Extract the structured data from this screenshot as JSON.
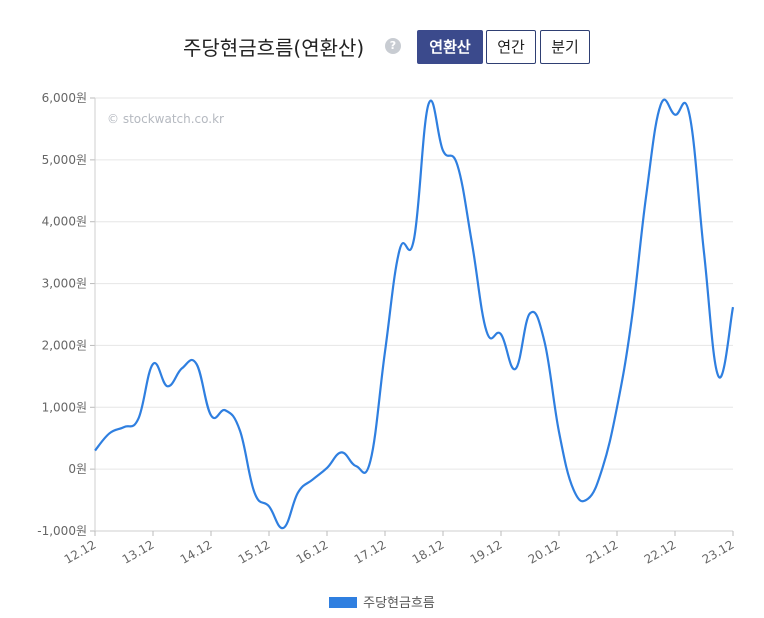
{
  "header": {
    "title": "주당현금흐름(연환산)",
    "help_icon": "question-circle-icon",
    "buttons": [
      {
        "label": "연환산",
        "active": true
      },
      {
        "label": "연간",
        "active": false
      },
      {
        "label": "분기",
        "active": false
      }
    ]
  },
  "watermark": "© stockwatch.co.kr",
  "colors": {
    "line": "#2f7fe0",
    "grid": "#e6e6e6",
    "active_button": "#3b4a8c"
  },
  "chart_data": {
    "type": "line",
    "title": "주당현금흐름(연환산)",
    "ylim": [
      -1000,
      6000
    ],
    "y_ticks": [
      {
        "value": 6000,
        "label": "6,000원"
      },
      {
        "value": 5000,
        "label": "5,000원"
      },
      {
        "value": 4000,
        "label": "4,000원"
      },
      {
        "value": 3000,
        "label": "3,000원"
      },
      {
        "value": 2000,
        "label": "2,000원"
      },
      {
        "value": 1000,
        "label": "1,000원"
      },
      {
        "value": 0,
        "label": "0원"
      },
      {
        "value": -1000,
        "label": "-1,000원"
      }
    ],
    "x_ticks": [
      "12.12",
      "13.12",
      "14.12",
      "15.12",
      "16.12",
      "17.12",
      "18.12",
      "19.12",
      "20.12",
      "21.12",
      "22.12",
      "23.12"
    ],
    "xlim": [
      0,
      44
    ],
    "grid": true,
    "legend_position": "bottom-center",
    "series": [
      {
        "name": "주당현금흐름",
        "x": [
          0,
          1,
          2,
          3,
          4,
          5,
          6,
          7,
          8,
          9,
          10,
          11,
          12,
          13,
          14,
          15,
          16,
          17,
          18,
          19,
          20,
          21,
          22,
          23,
          24,
          25,
          26,
          27,
          28,
          29,
          30,
          31,
          32,
          33,
          34,
          35,
          36,
          37,
          38,
          39,
          40,
          41,
          42,
          43,
          44
        ],
        "values": [
          300,
          580,
          680,
          820,
          1700,
          1340,
          1630,
          1700,
          870,
          950,
          620,
          -380,
          -600,
          -950,
          -380,
          -170,
          20,
          270,
          50,
          140,
          1900,
          3540,
          3720,
          5900,
          5150,
          4910,
          3650,
          2230,
          2180,
          1620,
          2520,
          2060,
          600,
          -330,
          -480,
          20,
          1000,
          2400,
          4400,
          5880,
          5730,
          5730,
          3500,
          1500,
          2620
        ]
      }
    ]
  }
}
